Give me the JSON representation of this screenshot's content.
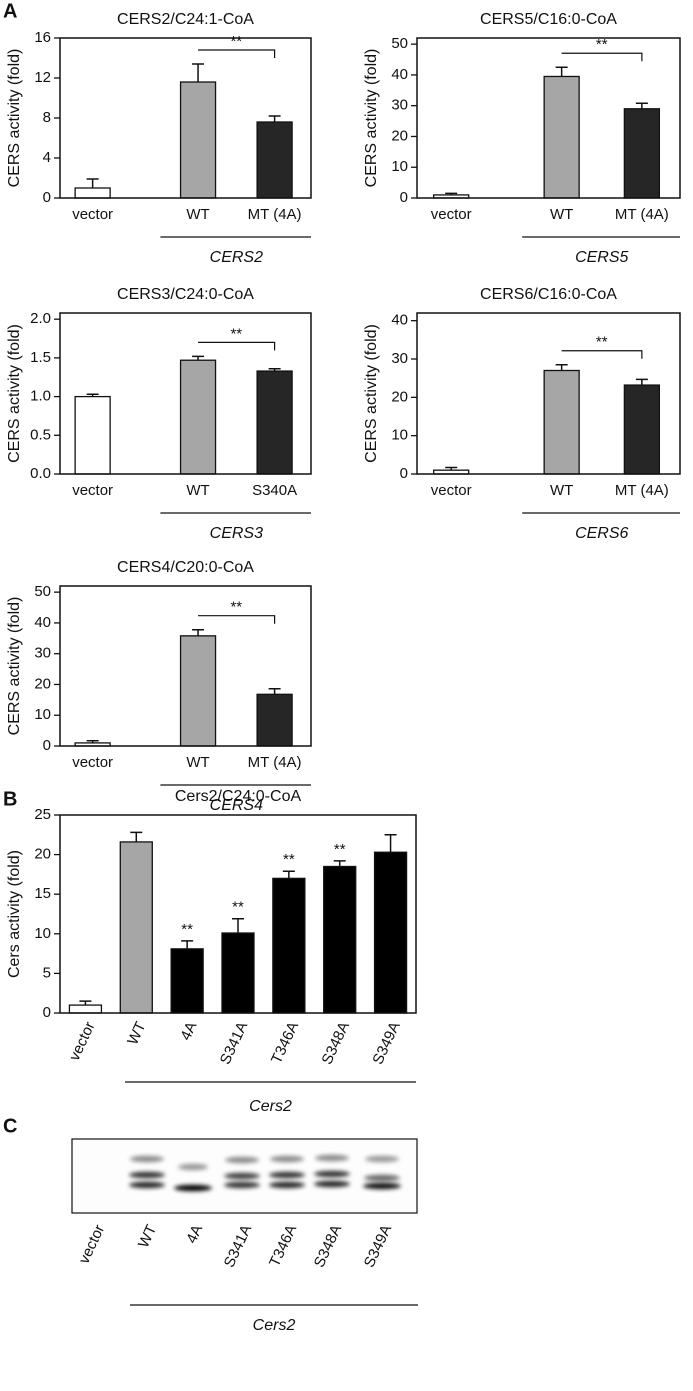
{
  "panel_labels": [
    "A",
    "B",
    "C"
  ],
  "chart_data": [
    {
      "type": "bar",
      "title": "CERS2/C24:1-CoA",
      "y_label": "CERS activity (fold)",
      "categories": [
        "vector",
        "WT",
        "MT (4A)"
      ],
      "values": [
        1.0,
        11.6,
        7.6
      ],
      "errors": [
        0.9,
        1.8,
        0.6
      ],
      "colors": [
        "#ffffff",
        "#a6a6a6",
        "#262626"
      ],
      "ylim": [
        0,
        16
      ],
      "yticks": [
        0,
        4,
        8,
        12,
        16
      ],
      "group_label": "CERS2",
      "significance": "**"
    },
    {
      "type": "bar",
      "title": "CERS5/C16:0-CoA",
      "y_label": "CERS activity (fold)",
      "categories": [
        "vector",
        "WT",
        "MT (4A)"
      ],
      "values": [
        1.0,
        39.5,
        29.0
      ],
      "errors": [
        0.5,
        3.0,
        1.8
      ],
      "colors": [
        "#ffffff",
        "#a6a6a6",
        "#262626"
      ],
      "ylim": [
        0,
        52
      ],
      "yticks": [
        0,
        10,
        20,
        30,
        40,
        50
      ],
      "group_label": "CERS5",
      "significance": "**"
    },
    {
      "type": "bar",
      "title": "CERS3/C24:0-CoA",
      "y_label": "CERS activity (fold)",
      "categories": [
        "vector",
        "WT",
        "S340A"
      ],
      "values": [
        1.0,
        1.47,
        1.33
      ],
      "errors": [
        0.03,
        0.05,
        0.03
      ],
      "colors": [
        "#ffffff",
        "#a6a6a6",
        "#262626"
      ],
      "ylim": [
        0,
        2.08
      ],
      "yticks": [
        {
          "value": 0,
          "label": "0.0"
        },
        0.5,
        {
          "value": 1,
          "label": "1.0"
        },
        1.5,
        {
          "value": 2,
          "label": "2.0"
        }
      ],
      "group_label": "CERS3",
      "significance": "**"
    },
    {
      "type": "bar",
      "title": "CERS6/C16:0-CoA",
      "y_label": "CERS activity (fold)",
      "categories": [
        "vector",
        "WT",
        "MT (4A)"
      ],
      "values": [
        1.0,
        27.0,
        23.2
      ],
      "errors": [
        0.7,
        1.5,
        1.5
      ],
      "colors": [
        "#ffffff",
        "#a6a6a6",
        "#262626"
      ],
      "ylim": [
        0,
        42
      ],
      "yticks": [
        0,
        10,
        20,
        30,
        40
      ],
      "group_label": "CERS6",
      "significance": "**"
    },
    {
      "type": "bar",
      "title": "CERS4/C20:0-CoA",
      "y_label": "CERS activity (fold)",
      "categories": [
        "vector",
        "WT",
        "MT (4A)"
      ],
      "values": [
        1.0,
        35.8,
        16.8
      ],
      "errors": [
        0.7,
        2.0,
        1.8
      ],
      "colors": [
        "#ffffff",
        "#a6a6a6",
        "#262626"
      ],
      "ylim": [
        0,
        52
      ],
      "yticks": [
        0,
        10,
        20,
        30,
        40,
        50
      ],
      "group_label": "CERS4",
      "significance": "**"
    },
    {
      "type": "bar",
      "title": "Cers2/C24:0-CoA",
      "y_label": "Cers activity (fold)",
      "categories": [
        "vector",
        "WT",
        "4A",
        "S341A",
        "T346A",
        "S348A",
        "S349A"
      ],
      "values": [
        1.0,
        21.6,
        8.1,
        10.1,
        17.0,
        18.5,
        20.3
      ],
      "errors": [
        0.5,
        1.2,
        1.0,
        1.8,
        0.9,
        0.7,
        2.2
      ],
      "colors": [
        "#ffffff",
        "#a6a6a6",
        "#000000",
        "#000000",
        "#000000",
        "#000000",
        "#000000"
      ],
      "ylim": [
        0,
        25
      ],
      "yticks": [
        0,
        5,
        10,
        15,
        20,
        25
      ],
      "group_label": "Cers2",
      "significance": [
        null,
        null,
        "**",
        "**",
        "**",
        "**",
        null
      ]
    }
  ],
  "blot": {
    "lanes": [
      "vector",
      "WT",
      "4A",
      "S341A",
      "T346A",
      "S348A",
      "S349A"
    ],
    "group_label": "Cers2"
  }
}
